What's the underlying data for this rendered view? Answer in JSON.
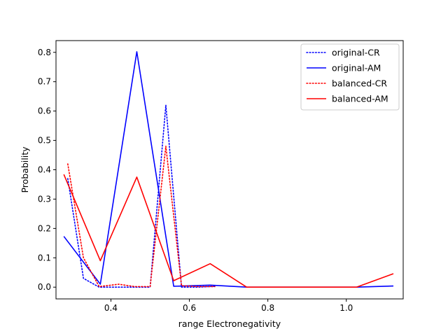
{
  "chart_data": {
    "type": "line",
    "title": "",
    "xlabel": "range Electronegativity",
    "ylabel": "Probability",
    "xlim": [
      0.26,
      1.145
    ],
    "ylim": [
      -0.04,
      0.84
    ],
    "xticks": [
      0.4,
      0.6,
      0.8,
      1.0
    ],
    "xtick_labels": [
      "0.4",
      "0.6",
      "0.8",
      "1.0"
    ],
    "yticks": [
      0.0,
      0.1,
      0.2,
      0.3,
      0.4,
      0.5,
      0.6,
      0.7,
      0.8
    ],
    "ytick_labels": [
      "0.0",
      "0.1",
      "0.2",
      "0.3",
      "0.4",
      "0.5",
      "0.6",
      "0.7",
      "0.8"
    ],
    "grid": false,
    "legend_position": "top-right",
    "series": [
      {
        "name": "original-CR",
        "color": "#0000ff",
        "style": "dotted",
        "x": [
          0.29,
          0.33,
          0.37,
          0.42,
          0.46,
          0.5,
          0.54,
          0.58,
          0.62,
          0.665
        ],
        "y": [
          0.37,
          0.03,
          0.0,
          0.0,
          0.0,
          0.0,
          0.62,
          0.0,
          0.0,
          0.003
        ]
      },
      {
        "name": "original-AM",
        "color": "#0000ff",
        "style": "solid",
        "x": [
          0.28,
          0.373,
          0.466,
          0.56,
          0.653,
          0.746,
          0.84,
          0.933,
          1.026,
          1.12
        ],
        "y": [
          0.173,
          0.01,
          0.802,
          0.003,
          0.007,
          0.0,
          0.0,
          0.0,
          0.0,
          0.004
        ]
      },
      {
        "name": "balanced-CR",
        "color": "#ff0000",
        "style": "dotted",
        "x": [
          0.29,
          0.33,
          0.37,
          0.42,
          0.46,
          0.5,
          0.54,
          0.58,
          0.62,
          0.665
        ],
        "y": [
          0.42,
          0.1,
          0.002,
          0.01,
          0.002,
          0.002,
          0.48,
          0.005,
          0.002,
          0.002
        ]
      },
      {
        "name": "balanced-AM",
        "color": "#ff0000",
        "style": "solid",
        "x": [
          0.28,
          0.373,
          0.466,
          0.56,
          0.653,
          0.746,
          0.84,
          0.933,
          1.026,
          1.12
        ],
        "y": [
          0.384,
          0.09,
          0.375,
          0.022,
          0.08,
          0.0,
          0.0,
          0.0,
          0.0,
          0.046
        ]
      }
    ]
  }
}
